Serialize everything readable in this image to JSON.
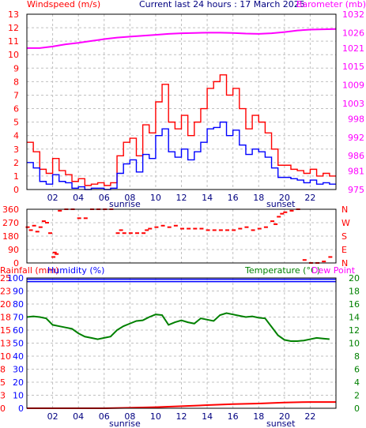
{
  "header": {
    "left_label": "Windspeed (m/s)",
    "center_label": "Current last 24 hours : 17 March 2025",
    "right_label": "Barometer (mb)"
  },
  "markers": {
    "sunrise": "sunrise",
    "sunset": "sunset"
  },
  "panel3_header": {
    "rainfall_label": "Rainfall (mm)",
    "humidity_label": "Humidity (%)",
    "temperature_label": "Temperature (°C)",
    "dewpoint_label": "Dew Point"
  },
  "colors": {
    "wind_gust": "#ff0000",
    "wind_avg": "#0000ff",
    "barometer": "#ff00ff",
    "direction": "#ff0000",
    "temperature": "#008000",
    "humidity": "#0000ff",
    "rainfall": "#ff0000",
    "dewpoint": "#ff00ff",
    "left_axis_text": "#ff0000",
    "grid": "#c0c0c0"
  },
  "chart_data": [
    {
      "type": "line",
      "title": "Current last 24 hours : 17 March 2025",
      "ylabel_left": "Windspeed (m/s)",
      "ylabel_right": "Barometer (mb)",
      "x_ticks": [
        "02",
        "04",
        "06",
        "08",
        "10",
        "12",
        "14",
        "16",
        "18",
        "20",
        "22"
      ],
      "y_left_ticks": [
        0,
        1,
        2,
        3,
        4,
        5,
        6,
        7,
        8,
        9,
        10,
        11,
        12,
        13
      ],
      "y_right_ticks": [
        975,
        981,
        986,
        992,
        998,
        1003,
        1009,
        1015,
        1021,
        1026,
        1032
      ],
      "ylim_left": [
        0,
        13
      ],
      "ylim_right": [
        975,
        1032
      ],
      "xlim": [
        0,
        24
      ],
      "series": [
        {
          "name": "Windspeed",
          "role": "gust",
          "x": [
            0,
            0.5,
            1,
            1.5,
            2,
            2.5,
            3,
            3.5,
            4,
            4.5,
            5,
            5.5,
            6,
            6.5,
            7,
            7.5,
            8,
            8.5,
            9,
            9.5,
            10,
            10.5,
            11,
            11.5,
            12,
            12.5,
            13,
            13.5,
            14,
            14.5,
            15,
            15.5,
            16,
            16.5,
            17,
            17.5,
            18,
            18.5,
            19,
            19.5,
            20,
            20.5,
            21,
            21.5,
            22,
            22.5,
            23,
            23.5
          ],
          "values": [
            3.5,
            2.8,
            1.5,
            1.2,
            2.3,
            1.4,
            1.1,
            0.6,
            0.8,
            0.3,
            0.4,
            0.5,
            0.3,
            0.5,
            2.5,
            3.5,
            3.8,
            2.5,
            4.8,
            4.2,
            6.5,
            7.8,
            5.0,
            4.5,
            5.5,
            4.0,
            5.0,
            6.0,
            7.5,
            8.0,
            8.5,
            7.0,
            7.5,
            6.0,
            4.5,
            5.5,
            5.0,
            4.2,
            3.0,
            1.8,
            1.8,
            1.5,
            1.4,
            1.2,
            1.5,
            1.0,
            1.2,
            1.0
          ]
        },
        {
          "name": "Windspeed average",
          "role": "average",
          "x": [
            0,
            0.5,
            1,
            1.5,
            2,
            2.5,
            3,
            3.5,
            4,
            4.5,
            5,
            5.5,
            6,
            6.5,
            7,
            7.5,
            8,
            8.5,
            9,
            9.5,
            10,
            10.5,
            11,
            11.5,
            12,
            12.5,
            13,
            13.5,
            14,
            14.5,
            15,
            15.5,
            16,
            16.5,
            17,
            17.5,
            18,
            18.5,
            19,
            19.5,
            20,
            20.5,
            21,
            21.5,
            22,
            22.5,
            23,
            23.5
          ],
          "values": [
            2.0,
            1.6,
            0.6,
            0.4,
            1.1,
            0.6,
            0.5,
            0.1,
            0.2,
            0.0,
            0.1,
            0.1,
            0.0,
            0.1,
            1.2,
            1.9,
            2.2,
            1.3,
            2.6,
            2.3,
            4.0,
            4.5,
            2.8,
            2.4,
            3.0,
            2.2,
            2.8,
            3.5,
            4.5,
            4.6,
            5.0,
            4.0,
            4.4,
            3.3,
            2.6,
            3.0,
            2.8,
            2.4,
            1.6,
            0.9,
            0.9,
            0.8,
            0.7,
            0.5,
            0.7,
            0.4,
            0.5,
            0.4
          ]
        },
        {
          "name": "Barometer",
          "axis": "right",
          "x": [
            0,
            1,
            2,
            3,
            4,
            5,
            6,
            7,
            8,
            9,
            10,
            11,
            12,
            13,
            14,
            15,
            16,
            17,
            18,
            19,
            20,
            21,
            22,
            23,
            24
          ],
          "values": [
            1021.0,
            1021.0,
            1021.5,
            1022.2,
            1022.7,
            1023.3,
            1023.9,
            1024.4,
            1024.7,
            1025.0,
            1025.3,
            1025.6,
            1025.8,
            1025.9,
            1026.0,
            1026.0,
            1025.9,
            1025.7,
            1025.6,
            1025.8,
            1026.2,
            1026.7,
            1027.0,
            1027.1,
            1027.2
          ]
        }
      ]
    },
    {
      "type": "scatter",
      "ylabel_left_ticks": [
        0,
        90,
        180,
        270,
        360
      ],
      "ylabel_right_ticks": [
        "N",
        "E",
        "S",
        "W",
        "N"
      ],
      "ylim": [
        0,
        360
      ],
      "xlim": [
        0,
        24
      ],
      "series": [
        {
          "name": "Wind direction",
          "x": [
            0.0,
            0.25,
            0.5,
            0.75,
            1.0,
            1.25,
            1.5,
            1.75,
            2.0,
            2.1,
            2.25,
            2.5,
            3.0,
            3.5,
            4.0,
            4.5,
            5.0,
            5.5,
            6.0,
            6.5,
            7.0,
            7.25,
            7.5,
            8.0,
            8.5,
            9.0,
            9.25,
            9.5,
            10.0,
            10.5,
            11.0,
            11.5,
            12.0,
            12.5,
            13.0,
            13.5,
            14.0,
            14.5,
            15.0,
            15.5,
            16.0,
            16.5,
            17.0,
            17.5,
            18.0,
            18.5,
            19.0,
            19.25,
            19.5,
            19.75,
            20.0,
            20.5,
            21.0,
            21.5,
            22.0,
            22.5,
            23.0,
            23.5
          ],
          "values": [
            240,
            220,
            250,
            210,
            240,
            280,
            270,
            200,
            40,
            70,
            60,
            350,
            360,
            360,
            300,
            300,
            360,
            360,
            360,
            360,
            200,
            220,
            200,
            200,
            200,
            200,
            220,
            230,
            240,
            250,
            240,
            250,
            230,
            230,
            230,
            230,
            220,
            220,
            220,
            220,
            220,
            230,
            240,
            220,
            230,
            240,
            280,
            260,
            310,
            330,
            340,
            350,
            360,
            20,
            0,
            0,
            10,
            40
          ]
        }
      ]
    },
    {
      "type": "line",
      "ylabel_left": "Rainfall (mm) / Humidity (%)",
      "ylabel_right": "Temperature (°C)",
      "y_left_ticks_humidity": [
        0,
        10,
        20,
        30,
        40,
        50,
        60,
        70,
        80,
        90,
        100
      ],
      "y_left_ticks_rain": [
        0,
        3,
        5,
        8,
        10,
        13,
        15,
        18,
        20,
        23,
        25
      ],
      "y_right_ticks": [
        0,
        2,
        4,
        6,
        8,
        10,
        12,
        14,
        16,
        18,
        20
      ],
      "ylim_humidity": [
        0,
        100
      ],
      "ylim_temperature": [
        0,
        20
      ],
      "xlim": [
        0,
        24
      ],
      "series": [
        {
          "name": "Temperature",
          "axis": "right",
          "x": [
            0,
            0.5,
            1,
            1.5,
            2,
            2.5,
            3,
            3.5,
            4,
            4.5,
            5,
            5.5,
            6,
            6.5,
            7,
            7.5,
            8,
            8.5,
            9,
            9.5,
            10,
            10.5,
            11,
            11.5,
            12,
            12.5,
            13,
            13.5,
            14,
            14.5,
            15,
            15.5,
            16,
            16.5,
            17,
            17.5,
            18,
            18.5,
            19,
            19.5,
            20,
            20.5,
            21,
            21.5,
            22,
            22.5,
            23,
            23.5
          ],
          "values": [
            14.0,
            14.1,
            14.0,
            13.8,
            12.8,
            12.6,
            12.4,
            12.2,
            11.5,
            11.0,
            10.8,
            10.6,
            10.8,
            11.0,
            12.0,
            12.6,
            13.0,
            13.4,
            13.5,
            14.0,
            14.4,
            14.3,
            12.8,
            13.2,
            13.5,
            13.2,
            13.0,
            13.8,
            13.6,
            13.4,
            14.3,
            14.6,
            14.4,
            14.2,
            14.0,
            14.1,
            13.9,
            13.8,
            12.5,
            11.2,
            10.5,
            10.3,
            10.3,
            10.4,
            10.6,
            10.8,
            10.7,
            10.6
          ]
        },
        {
          "name": "Humidity",
          "axis": "left",
          "x": [
            0,
            24
          ],
          "values": [
            99,
            99
          ]
        },
        {
          "name": "Rainfall",
          "axis": "left_rain",
          "x": [
            0,
            2,
            4,
            6,
            8,
            10,
            12,
            14,
            16,
            18,
            19,
            20,
            22,
            24
          ],
          "values": [
            0.0,
            0.0,
            0.0,
            0.0,
            0.1,
            0.2,
            0.4,
            0.6,
            0.8,
            0.9,
            1.0,
            1.1,
            1.2,
            1.2
          ]
        }
      ]
    }
  ]
}
